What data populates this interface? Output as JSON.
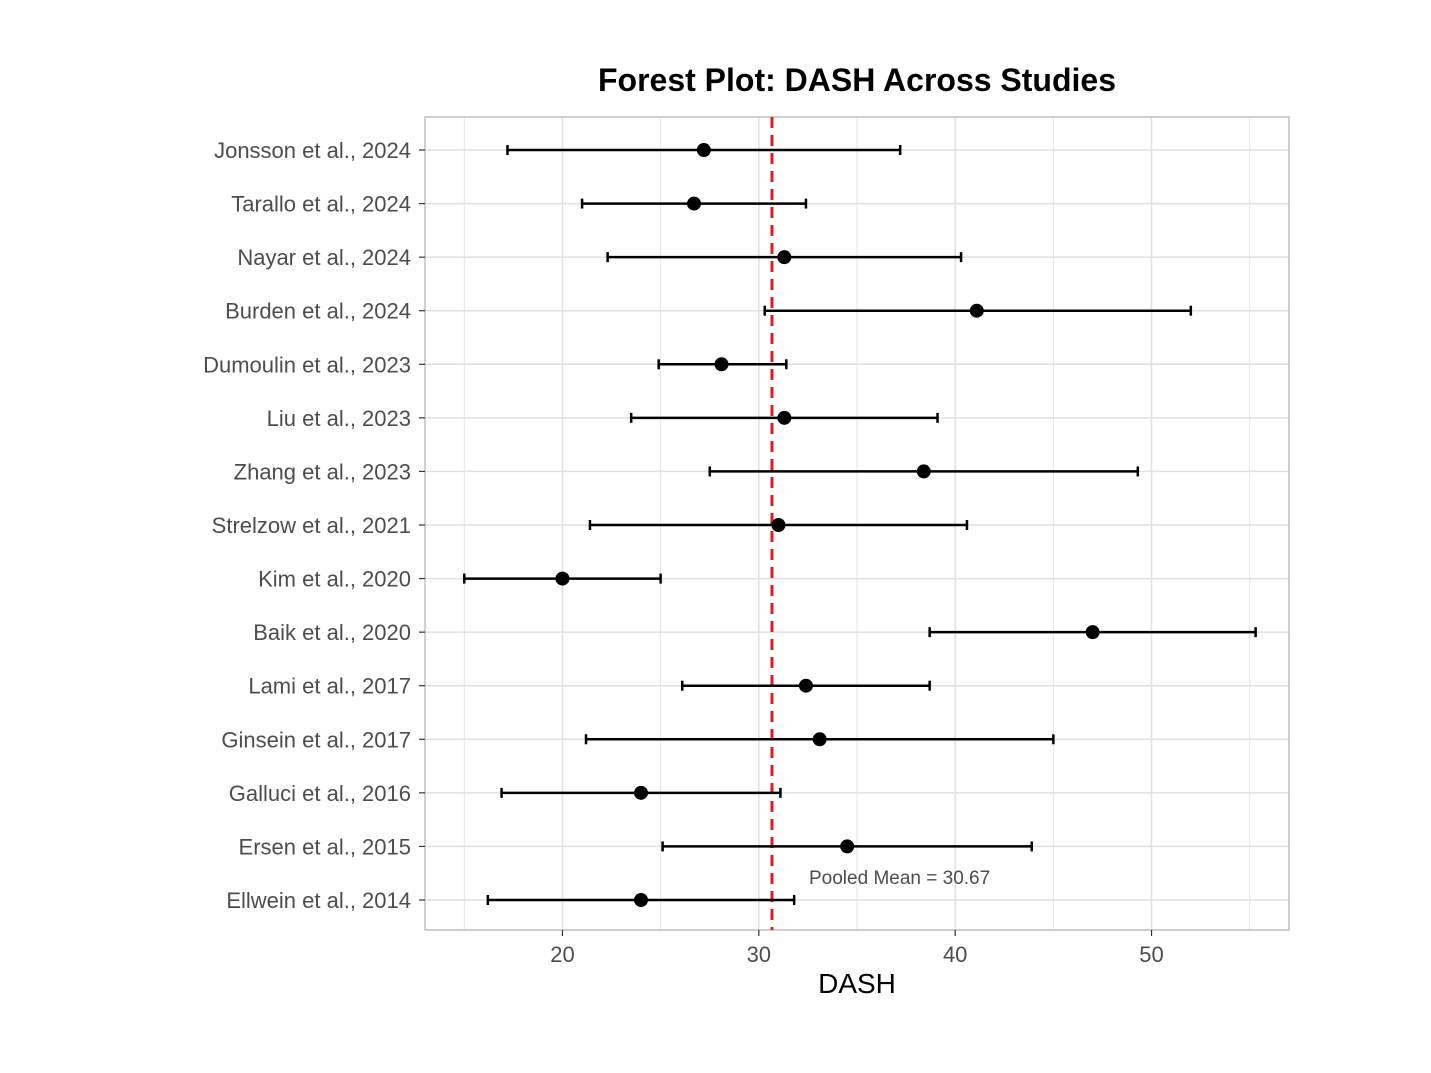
{
  "chart_data": {
    "type": "forest",
    "title": "Forest Plot: DASH Across Studies",
    "xlabel": "DASH",
    "ylabel": "",
    "xlim": [
      13,
      57
    ],
    "x_ticks": [
      20,
      30,
      40,
      50
    ],
    "grid": true,
    "studies": [
      {
        "label": "Jonsson et al., 2024",
        "mean": 27.2,
        "lower": 17.2,
        "upper": 37.2
      },
      {
        "label": "Tarallo et al., 2024",
        "mean": 26.7,
        "lower": 21.0,
        "upper": 32.4
      },
      {
        "label": "Nayar et al., 2024",
        "mean": 31.3,
        "lower": 22.3,
        "upper": 40.3
      },
      {
        "label": "Burden et al., 2024",
        "mean": 41.1,
        "lower": 30.3,
        "upper": 52.0
      },
      {
        "label": "Dumoulin et al., 2023",
        "mean": 28.1,
        "lower": 24.9,
        "upper": 31.4
      },
      {
        "label": "Liu et al., 2023",
        "mean": 31.3,
        "lower": 23.5,
        "upper": 39.1
      },
      {
        "label": "Zhang et al., 2023",
        "mean": 38.4,
        "lower": 27.5,
        "upper": 49.3
      },
      {
        "label": "Strelzow et al., 2021",
        "mean": 31.0,
        "lower": 21.4,
        "upper": 40.6
      },
      {
        "label": "Kim et al., 2020",
        "mean": 20.0,
        "lower": 15.0,
        "upper": 25.0
      },
      {
        "label": "Baik et al., 2020",
        "mean": 47.0,
        "lower": 38.7,
        "upper": 55.3
      },
      {
        "label": "Lami et al., 2017",
        "mean": 32.4,
        "lower": 26.1,
        "upper": 38.7
      },
      {
        "label": "Ginsein et al., 2017",
        "mean": 33.1,
        "lower": 21.2,
        "upper": 45.0
      },
      {
        "label": "Galluci et al., 2016",
        "mean": 24.0,
        "lower": 16.9,
        "upper": 31.1
      },
      {
        "label": "Ersen et al., 2015",
        "mean": 34.5,
        "lower": 25.1,
        "upper": 43.9
      },
      {
        "label": "Ellwein et al., 2014",
        "mean": 24.0,
        "lower": 16.2,
        "upper": 31.8
      }
    ],
    "pooled_mean": 30.67,
    "pooled_label": "Pooled Mean = 30.67",
    "colors": {
      "points": "#000000",
      "pooled_line": "#e41a1c",
      "grid": "#e0e0e0",
      "panel_border": "#bfbfbf",
      "tick_text": "#4d4d4d"
    }
  }
}
